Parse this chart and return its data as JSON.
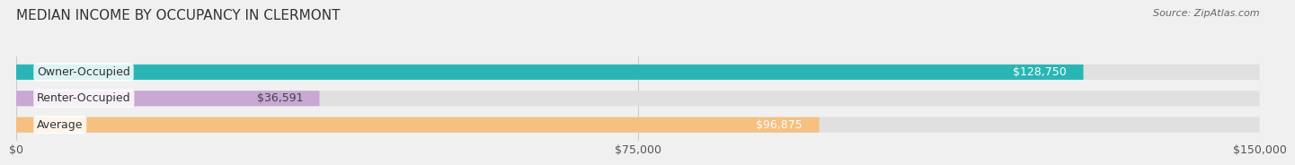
{
  "title": "MEDIAN INCOME BY OCCUPANCY IN CLERMONT",
  "source": "Source: ZipAtlas.com",
  "categories": [
    "Owner-Occupied",
    "Renter-Occupied",
    "Average"
  ],
  "values": [
    128750,
    36591,
    96875
  ],
  "bar_colors": [
    "#2ab5b5",
    "#c9a8d4",
    "#f5c080"
  ],
  "bar_labels": [
    "$128,750",
    "$36,591",
    "$96,875"
  ],
  "label_colors": [
    "#ffffff",
    "#444444",
    "#ffffff"
  ],
  "xlim": [
    0,
    150000
  ],
  "xticks": [
    0,
    75000,
    150000
  ],
  "xtick_labels": [
    "$0",
    "$75,000",
    "$150,000"
  ],
  "background_color": "#f0f0f0",
  "bar_bg_color": "#e0e0e0",
  "title_fontsize": 11,
  "source_fontsize": 8,
  "label_fontsize": 9,
  "tick_fontsize": 9
}
